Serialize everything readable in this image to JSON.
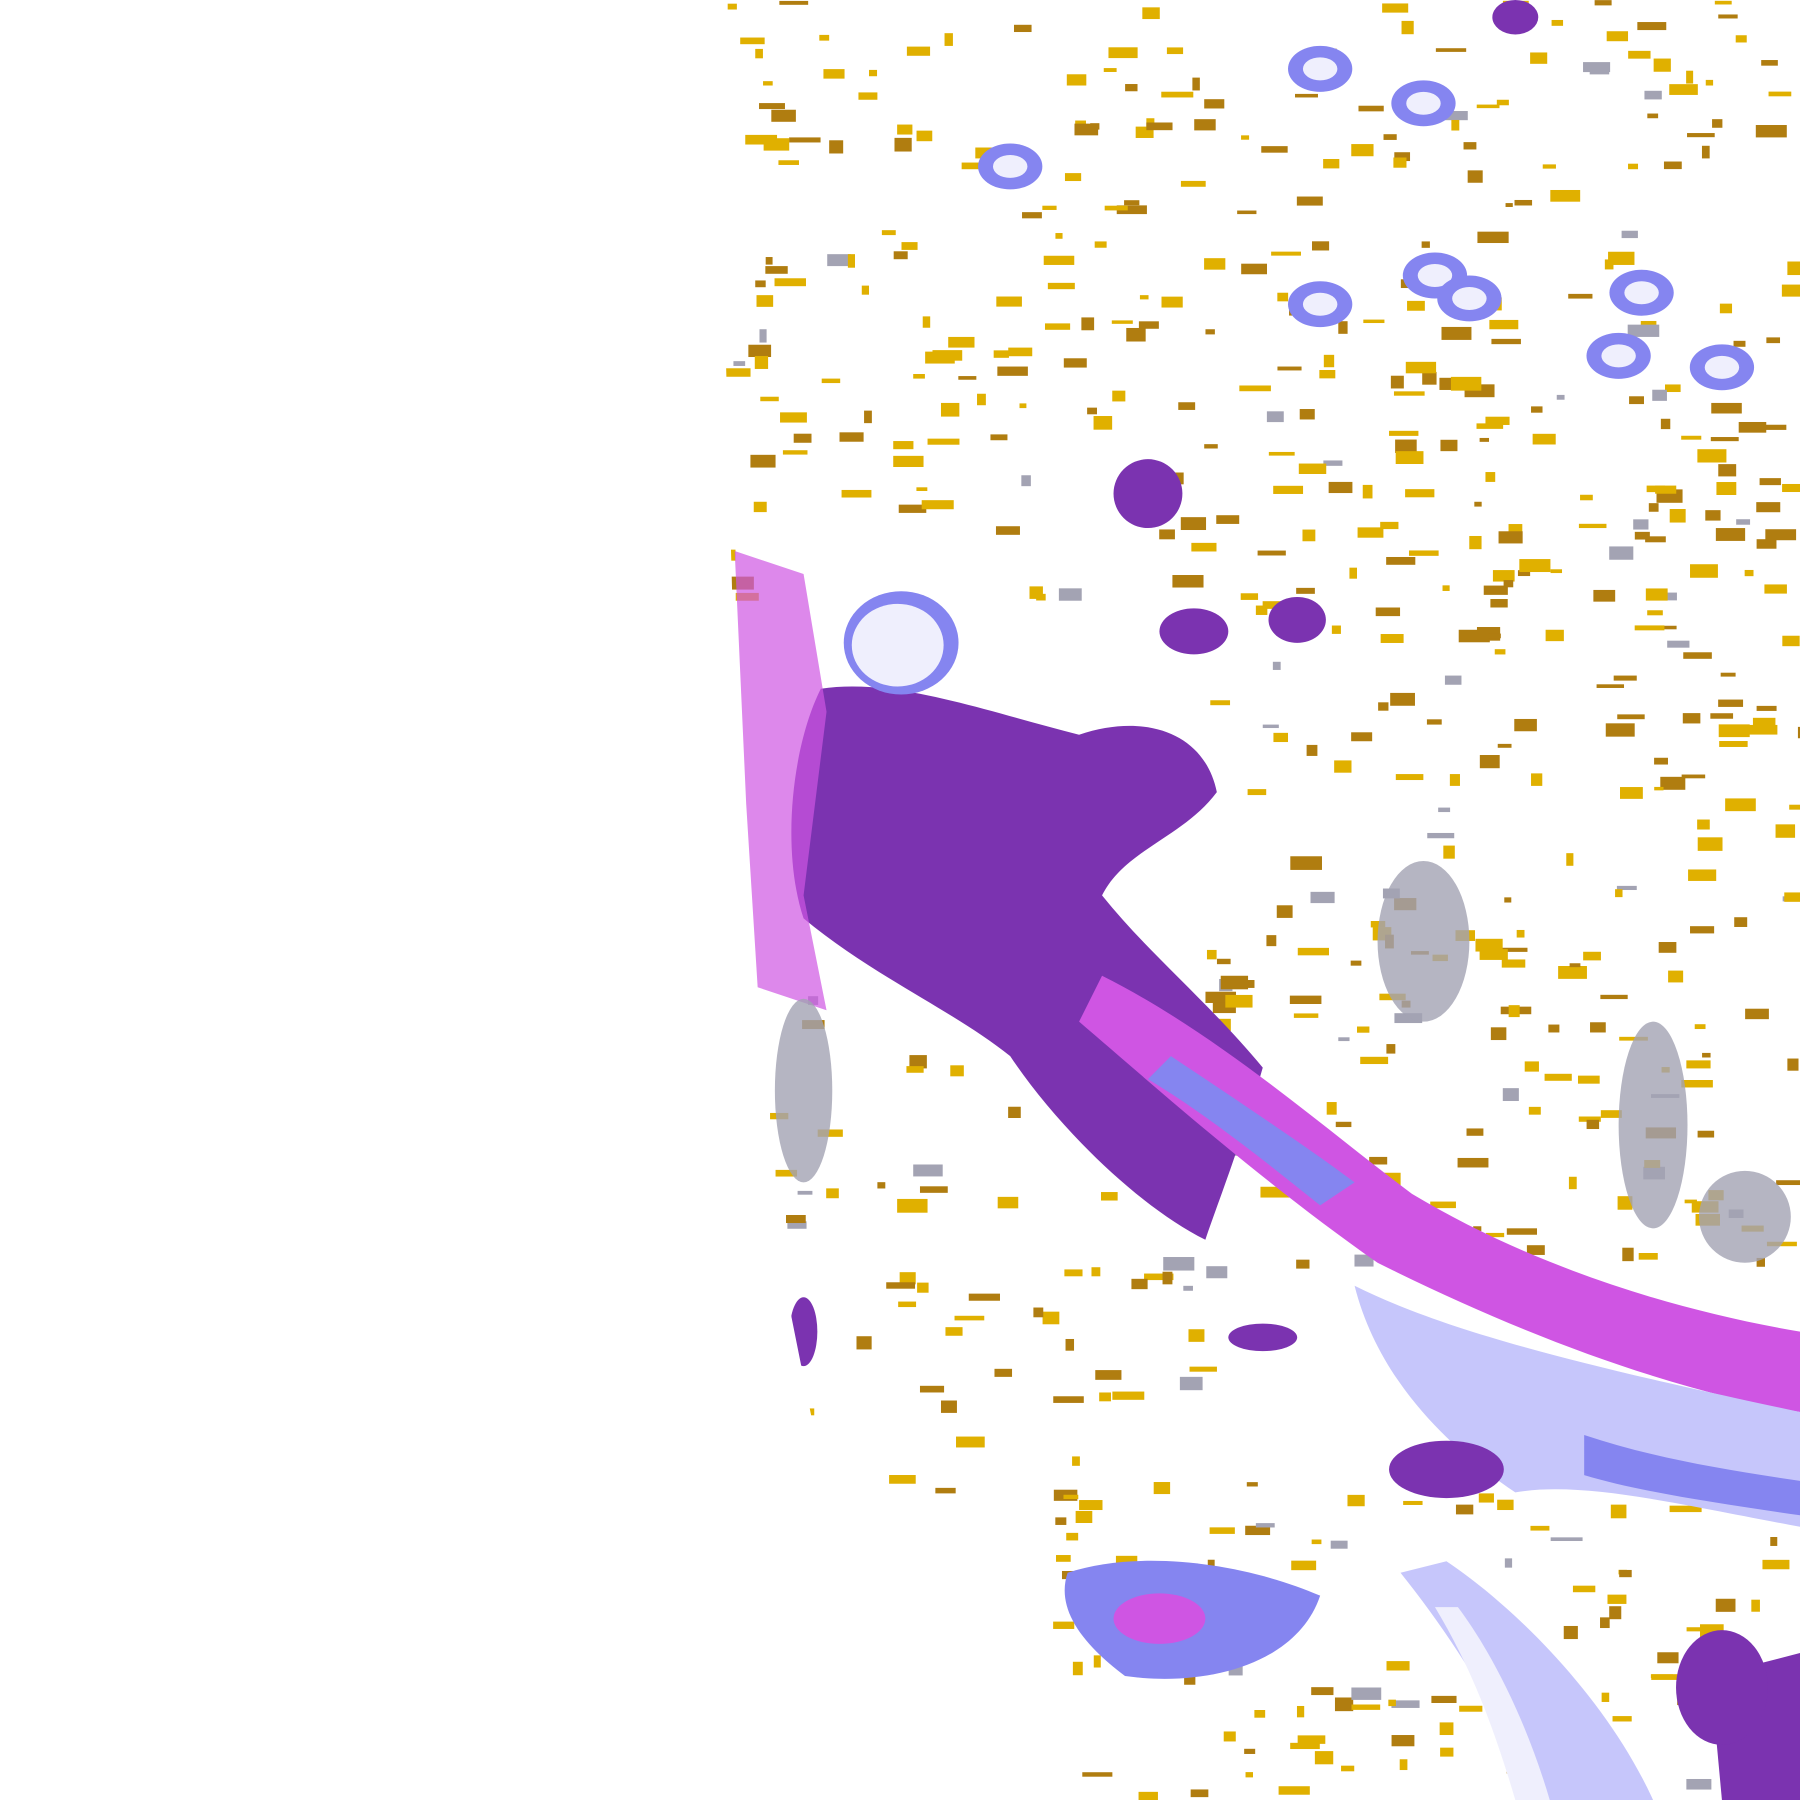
{
  "map": {
    "background": "#ffffff",
    "palette": {
      "gold": "#e0b000",
      "dark_gold": "#b07d10",
      "purple": "#7b33b0",
      "magenta": "#cf55e3",
      "periwinkle": "#8585f0",
      "lavender": "#c6c6fb",
      "pale": "#efeffd",
      "grey": "#a3a3b3"
    }
  }
}
